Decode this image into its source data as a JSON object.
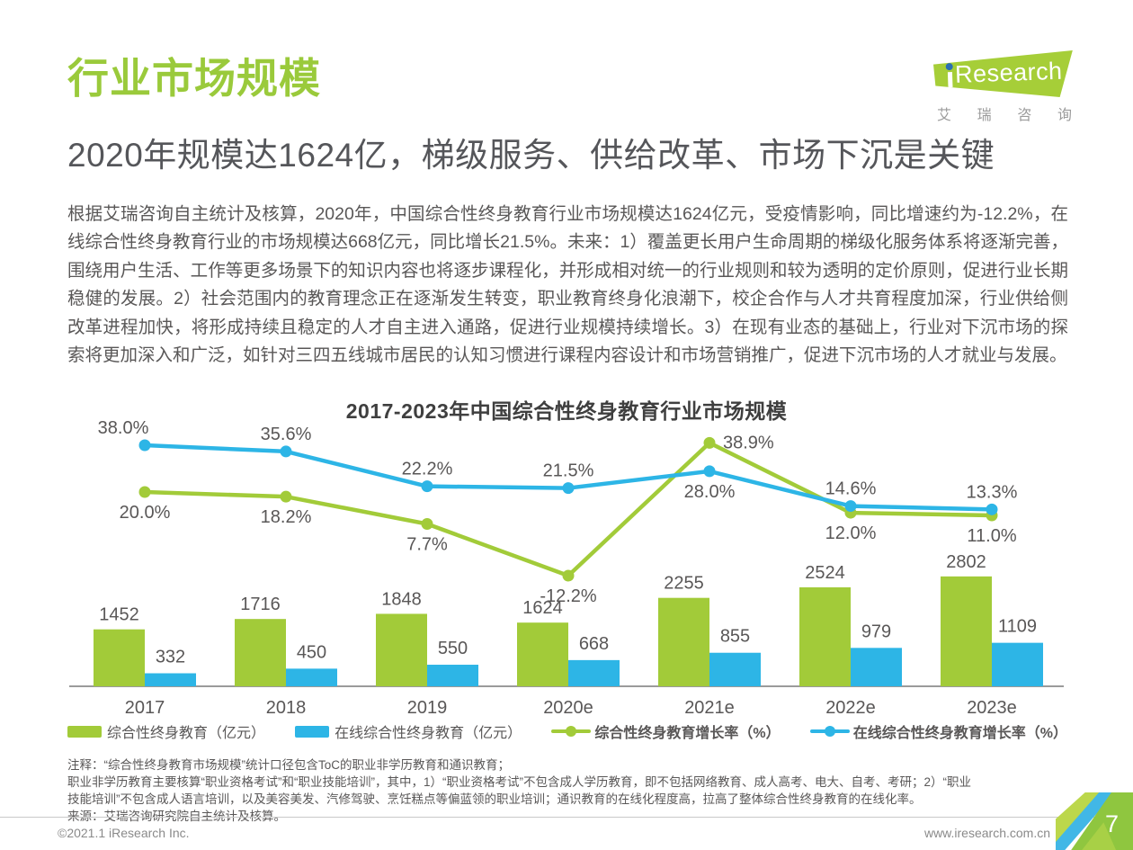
{
  "logo": {
    "brand": "iResearch",
    "brand_rest": "Research",
    "tagline": "艾瑞咨询"
  },
  "header": {
    "title": "行业市场规模",
    "subtitle": "2020年规模达1624亿，梯级服务、供给改革、市场下沉是关键"
  },
  "body": {
    "paragraph": "根据艾瑞咨询自主统计及核算，2020年，中国综合性终身教育行业市场规模达1624亿元，受疫情影响，同比增速约为-12.2%，在线综合性终身教育行业的市场规模达668亿元，同比增长21.5%。未来：1）覆盖更长用户生命周期的梯级化服务体系将逐渐完善，围绕用户生活、工作等更多场景下的知识内容也将逐步课程化，并形成相对统一的行业规则和较为透明的定价原则，促进行业长期稳健的发展。2）社会范围内的教育理念正在逐渐发生转变，职业教育终身化浪潮下，校企合作与人才共育程度加深，行业供给侧改革进程加快，将形成持续且稳定的人才自主进入通路，促进行业规模持续增长。3）在现有业态的基础上，行业对下沉市场的探索将更加深入和广泛，如针对三四五线城市居民的认知习惯进行课程内容设计和市场营销推广，促进下沉市场的人才就业与发展。"
  },
  "chart_data": {
    "type": "bar",
    "subtype": "combo-bar-line",
    "title": "2017-2023年中国综合性终身教育行业市场规模",
    "categories": [
      "2017",
      "2018",
      "2019",
      "2020e",
      "2021e",
      "2022e",
      "2023e"
    ],
    "bar_series": [
      {
        "name": "综合性终身教育（亿元）",
        "color": "#a2cb39",
        "values": [
          1452,
          1716,
          1848,
          1624,
          2255,
          2524,
          2802
        ]
      },
      {
        "name": "在线综合性终身教育（亿元）",
        "color": "#2db5e6",
        "values": [
          332,
          450,
          550,
          668,
          855,
          979,
          1109
        ]
      }
    ],
    "line_series": [
      {
        "name": "综合性终身教育增长率（%）",
        "color": "#a2cb39",
        "values": [
          20.0,
          18.2,
          7.7,
          -12.2,
          38.9,
          12.0,
          11.0
        ],
        "label_positions": [
          "below",
          "below",
          "below",
          "below",
          "right",
          "below",
          "below"
        ]
      },
      {
        "name": "在线综合性终身教育增长率（%）",
        "color": "#2db5e6",
        "values": [
          38.0,
          35.6,
          22.2,
          21.5,
          28.0,
          14.6,
          13.3
        ],
        "label_positions": [
          "above-left",
          "above",
          "above",
          "above",
          "below",
          "above",
          "above"
        ]
      }
    ],
    "bar_ylim": [
      0,
      3200
    ],
    "line_ylim": [
      -15,
      45
    ],
    "grid": false,
    "y_axis_visible": false,
    "legend_position": "bottom"
  },
  "footnote": {
    "lines": [
      "注释：“综合性终身教育市场规模”统计口径包含ToC的职业非学历教育和通识教育；",
      "职业非学历教育主要核算“职业资格考试”和“职业技能培训”，其中，1）“职业资格考试”不包含成人学历教育，即不包括网络教育、成人高考、电大、自考、考研；2）“职业",
      "技能培训”不包含成人语言培训，以及美容美发、汽修驾驶、烹饪糕点等偏蓝领的职业培训；通识教育的在线化程度高，拉高了整体综合性终身教育的在线化率。",
      "来源：艾瑞咨询研究院自主统计及核算。"
    ]
  },
  "footer": {
    "copyright": "©2021.1 iResearch Inc.",
    "url": "www.iresearch.com.cn",
    "page_number": "7"
  },
  "colors": {
    "brand_green": "#a6ce38",
    "series_green": "#a2cb39",
    "series_blue": "#2db5e6",
    "title_green": "#9aca3b",
    "text_gray": "#595757"
  }
}
